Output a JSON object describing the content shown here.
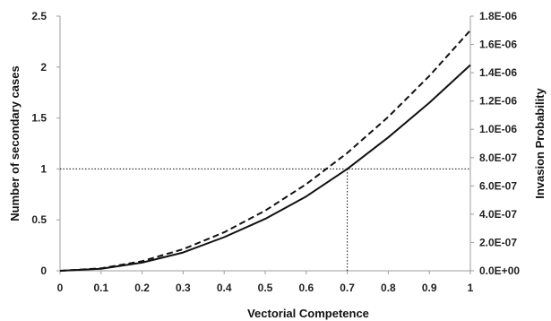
{
  "chart_data": {
    "type": "line",
    "title": "",
    "xlabel": "Vectorial Competence",
    "ylabel": "Number of secondary cases",
    "y2label": "Invasion Probability",
    "xlim": [
      0,
      1
    ],
    "ylim": [
      0,
      2.5
    ],
    "y2lim": [
      0,
      1.8e-06
    ],
    "grid": false,
    "x_ticks": [
      "0",
      "0.1",
      "0.2",
      "0.3",
      "0.4",
      "0.5",
      "0.6",
      "0.7",
      "0.8",
      "0.9",
      "1"
    ],
    "y_ticks": [
      "0",
      "0.5",
      "1",
      "1.5",
      "2",
      "2.5"
    ],
    "y2_ticks": [
      "0.0E+00",
      "2.0E-07",
      "4.0E-07",
      "6.0E-07",
      "8.0E-07",
      "1.0E-06",
      "1.2E-06",
      "1.4E-06",
      "1.6E-06",
      "1.8E-06"
    ],
    "series": [
      {
        "style": "solid",
        "axis": "left",
        "x": [
          0,
          0.1,
          0.2,
          0.3,
          0.4,
          0.5,
          0.6,
          0.7,
          0.8,
          0.9,
          1
        ],
        "values": [
          0,
          0.02,
          0.08,
          0.18,
          0.33,
          0.51,
          0.73,
          1.0,
          1.31,
          1.65,
          2.02
        ]
      },
      {
        "style": "dashed",
        "axis": "right",
        "x": [
          0,
          0.1,
          0.2,
          0.3,
          0.4,
          0.5,
          0.6,
          0.7,
          0.8,
          0.9,
          1
        ],
        "values": [
          0,
          1.7e-08,
          6.8e-08,
          1.53e-07,
          2.72e-07,
          4.25e-07,
          6.12e-07,
          8.33e-07,
          1.088e-06,
          1.377e-06,
          1.7e-06
        ]
      }
    ],
    "reference_lines": [
      {
        "orientation": "horizontal",
        "axis": "left",
        "value": 1,
        "style": "dotted"
      },
      {
        "orientation": "vertical",
        "value": 0.7,
        "from": 0,
        "to": 1,
        "style": "dotted"
      }
    ],
    "colors": {
      "line": "#111111",
      "axis": "#9e9e9e",
      "reference": "#222222"
    }
  }
}
